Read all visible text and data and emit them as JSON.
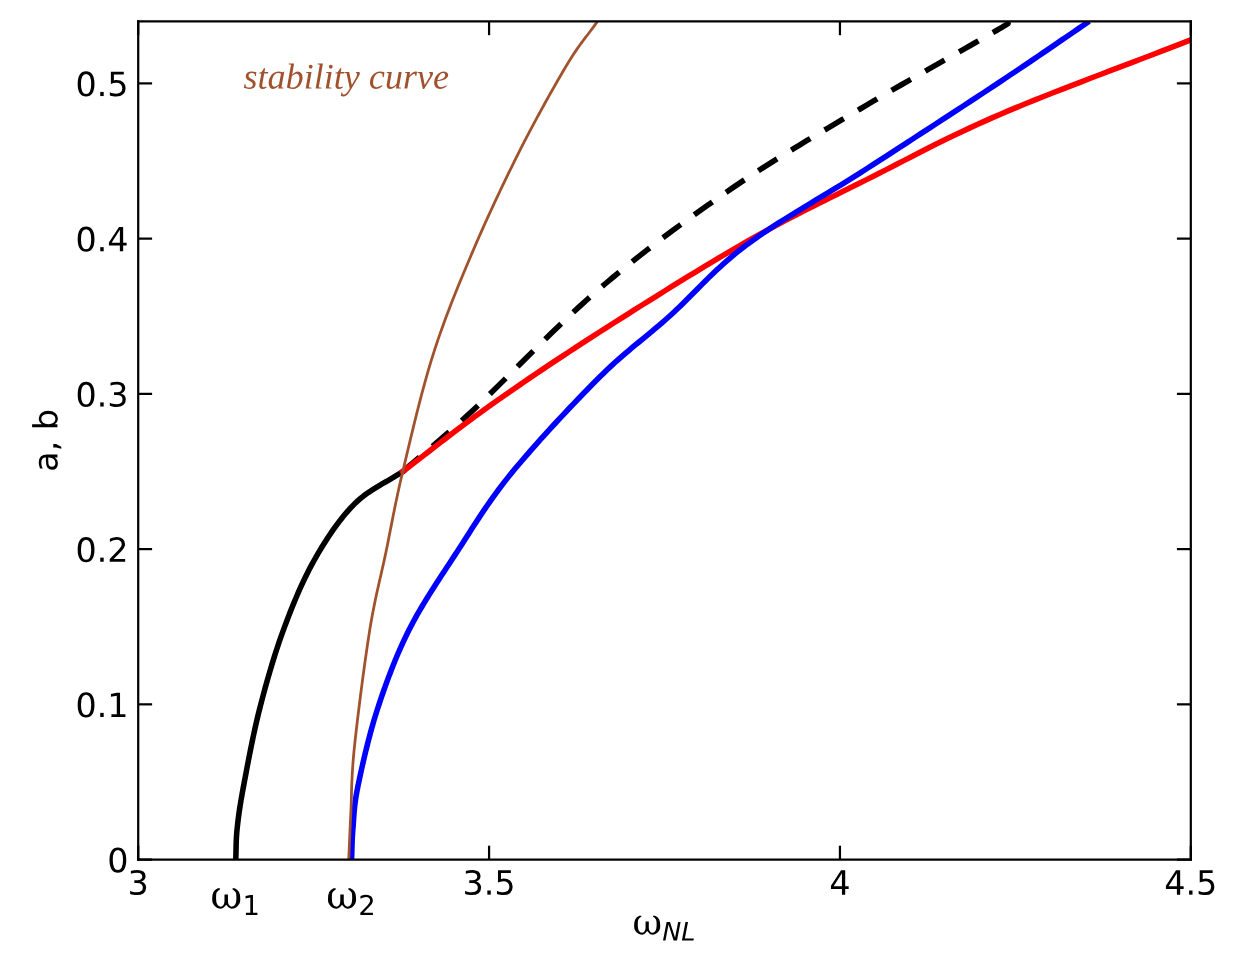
{
  "chart_data": {
    "type": "line",
    "xlabel": "ω$_{NL}$",
    "ylabel": "a, b",
    "xlim": [
      3,
      4.5
    ],
    "ylim": [
      0,
      0.54
    ],
    "xticks": [
      3,
      3.5,
      4,
      4.5
    ],
    "yticks": [
      0,
      0.1,
      0.2,
      0.3,
      0.4,
      0.5
    ],
    "grid": false,
    "legend": false,
    "marker": "none",
    "annotations": [
      "stability curve",
      {
        "text": "ω$_{1}$",
        "x": 3.139,
        "y": 0
      },
      {
        "text": "ω$_{2}$",
        "x": 3.304,
        "y": 0
      }
    ],
    "series": [
      {
        "color": "#000000",
        "line_style": "solid",
        "x": [
          3.139,
          3.141,
          3.15,
          3.173,
          3.207,
          3.251,
          3.308,
          3.377
        ],
        "values": [
          0,
          0.02,
          0.047,
          0.097,
          0.148,
          0.193,
          0.229,
          0.25
        ]
      },
      {
        "color": "#000000",
        "line_style": "dashed",
        "x": [
          3.377,
          3.476,
          3.658,
          3.848,
          4.038,
          4.219,
          4.24
        ],
        "values": [
          0.25,
          0.289,
          0.368,
          0.433,
          0.486,
          0.533,
          0.539
        ]
      },
      {
        "color": "#ff0000",
        "line_style": "solid",
        "x": [
          3.377,
          3.5,
          3.658,
          3.867,
          4.038,
          4.228,
          4.5
        ],
        "values": [
          0.25,
          0.292,
          0.34,
          0.398,
          0.438,
          0.48,
          0.528
        ]
      },
      {
        "color": "#0000ff",
        "line_style": "solid",
        "x": [
          3.304,
          3.306,
          3.313,
          3.341,
          3.386,
          3.454,
          3.532,
          3.658,
          3.757,
          3.867,
          4.038,
          4.228,
          4.352
        ],
        "values": [
          0,
          0.02,
          0.047,
          0.097,
          0.148,
          0.198,
          0.249,
          0.311,
          0.35,
          0.396,
          0.445,
          0.501,
          0.539
        ]
      },
      {
        "color": "#a0522d",
        "line_style": "solid",
        "x": [
          3.3,
          3.303,
          3.308,
          3.33,
          3.353,
          3.377,
          3.42,
          3.476,
          3.543,
          3.611,
          3.653
        ],
        "values": [
          0,
          0.03,
          0.072,
          0.148,
          0.198,
          0.25,
          0.325,
          0.391,
          0.456,
          0.512,
          0.539
        ]
      }
    ]
  }
}
